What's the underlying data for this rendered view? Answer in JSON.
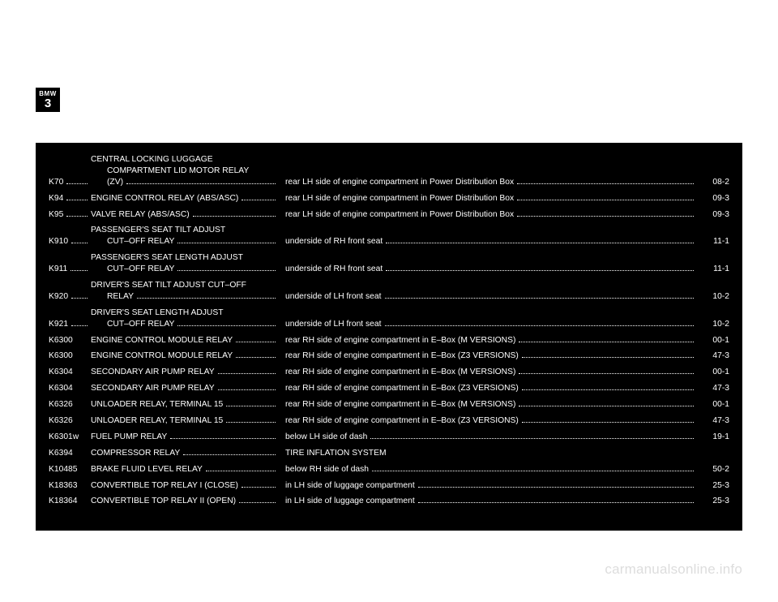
{
  "logo": {
    "brand": "BMW",
    "model": "3"
  },
  "panel": {
    "background_color": "#000000",
    "text_color": "#ffffff",
    "font_size_pt": 8,
    "rows": [
      {
        "ref": "K70",
        "refDots": true,
        "desc_lines": [
          "CENTRAL LOCKING LUGGAGE",
          "COMPARTMENT LID MOTOR RELAY",
          "(ZV)"
        ],
        "loc": "rear LH side of engine compartment in Power Distribution Box",
        "page": "08-2"
      },
      {
        "ref": "K94",
        "refDots": true,
        "desc_lines": [
          "ENGINE CONTROL RELAY (ABS/ASC)"
        ],
        "loc": "rear LH side of engine compartment in Power Distribution Box",
        "page": "09-3"
      },
      {
        "ref": "K95",
        "refDots": true,
        "desc_lines": [
          "VALVE RELAY (ABS/ASC)"
        ],
        "loc": "rear LH side of engine compartment in Power Distribution Box",
        "page": "09-3"
      },
      {
        "ref": "K910",
        "refDots": true,
        "desc_lines": [
          "PASSENGER'S SEAT TILT ADJUST",
          "CUT–OFF RELAY"
        ],
        "loc": "underside of RH front seat",
        "page": "11-1"
      },
      {
        "ref": "K911",
        "refDots": true,
        "desc_lines": [
          "PASSENGER'S SEAT LENGTH ADJUST",
          "CUT–OFF RELAY"
        ],
        "loc": "underside of RH front seat",
        "page": "11-1"
      },
      {
        "ref": "K920",
        "refDots": true,
        "desc_lines": [
          "DRIVER'S SEAT TILT ADJUST CUT–OFF",
          "RELAY"
        ],
        "loc": "underside of LH front seat",
        "page": "10-2"
      },
      {
        "ref": "K921",
        "refDots": true,
        "desc_lines": [
          "DRIVER'S SEAT LENGTH ADJUST",
          "CUT–OFF RELAY"
        ],
        "loc": "underside of LH front seat",
        "page": "10-2"
      },
      {
        "ref": "K6300",
        "refDots": false,
        "desc_lines": [
          "ENGINE CONTROL MODULE RELAY"
        ],
        "loc": "rear RH side of engine compartment in E–Box (M VERSIONS)",
        "page": "00-1"
      },
      {
        "ref": "K6300",
        "refDots": false,
        "desc_lines": [
          "ENGINE CONTROL MODULE RELAY"
        ],
        "loc": "rear RH side of engine compartment in E–Box (Z3 VERSIONS)",
        "page": "47-3"
      },
      {
        "ref": "K6304",
        "refDots": false,
        "desc_lines": [
          "SECONDARY AIR PUMP RELAY"
        ],
        "loc": "rear RH side of engine compartment in E–Box (M VERSIONS)",
        "page": "00-1"
      },
      {
        "ref": "K6304",
        "refDots": false,
        "desc_lines": [
          "SECONDARY AIR PUMP RELAY"
        ],
        "loc": "rear RH side of engine compartment in E–Box (Z3 VERSIONS)",
        "page": "47-3"
      },
      {
        "ref": "K6326",
        "refDots": false,
        "desc_lines": [
          "UNLOADER RELAY, TERMINAL 15"
        ],
        "loc": "rear RH side of engine compartment in E–Box (M VERSIONS)",
        "page": "00-1"
      },
      {
        "ref": "K6326",
        "refDots": false,
        "desc_lines": [
          "UNLOADER RELAY, TERMINAL 15"
        ],
        "loc": "rear RH side of engine compartment in E–Box (Z3 VERSIONS)",
        "page": "47-3"
      },
      {
        "ref": "K6301w",
        "refDots": false,
        "desc_lines": [
          "FUEL PUMP RELAY"
        ],
        "loc": "below LH side of dash",
        "page": "19-1"
      },
      {
        "ref": "K6394",
        "refDots": false,
        "desc_lines": [
          "COMPRESSOR RELAY"
        ],
        "loc": "TIRE INFLATION SYSTEM",
        "locNoDots": true,
        "page": ""
      },
      {
        "ref": "K10485",
        "refDots": false,
        "desc_lines": [
          "BRAKE FLUID LEVEL RELAY"
        ],
        "loc": "below RH side of dash",
        "page": "50-2"
      },
      {
        "ref": "K18363",
        "refDots": false,
        "desc_lines": [
          "CONVERTIBLE TOP RELAY I (CLOSE)"
        ],
        "loc": "in LH side of luggage compartment",
        "page": "25-3"
      },
      {
        "ref": "K18364",
        "refDots": false,
        "desc_lines": [
          "CONVERTIBLE TOP RELAY II (OPEN)"
        ],
        "loc": "in LH side of luggage compartment",
        "page": "25-3"
      }
    ]
  },
  "watermark": "carmanualsonline.info"
}
